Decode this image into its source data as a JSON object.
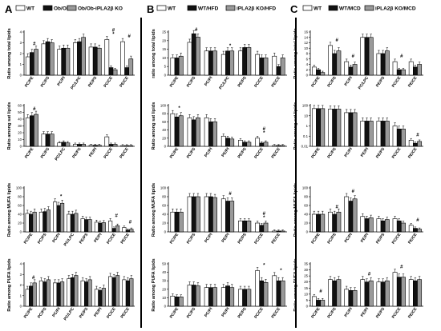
{
  "colors": {
    "wt": "#ffffff",
    "treated": "#111111",
    "ko": "#9a9a9a",
    "stroke": "#000000"
  },
  "chart_data": [
    {
      "type": "bar",
      "panel": "A",
      "row": 0,
      "ylabel": "Ratio among total lipids",
      "scale": "linear",
      "ylim": [
        0,
        4
      ],
      "yticks": [
        "0",
        "1",
        "2",
        "3",
        "4"
      ],
      "categories": [
        "PC/PE",
        "PC/PS",
        "PC/PI",
        "PC/LPC",
        "PE/PS",
        "PC/CE",
        "PE/CE"
      ],
      "series": [
        {
          "name": "WT",
          "values": [
            1.7,
            2.9,
            2.4,
            3.0,
            2.6,
            3.3,
            3.1
          ]
        },
        {
          "name": "Ob/Ob",
          "values": [
            2.1,
            3.1,
            2.5,
            3.1,
            2.6,
            0.7,
            0.7
          ]
        },
        {
          "name": "Ob/Ob-iPLA2β KO",
          "values": [
            2.4,
            3.0,
            2.5,
            3.5,
            2.5,
            0.5,
            1.5
          ]
        }
      ],
      "annotations": [
        {
          "cat": 0,
          "text": "#"
        },
        {
          "cat": 5,
          "text": "*"
        },
        {
          "cat": 5,
          "text": "#"
        },
        {
          "cat": 6,
          "text": "#"
        }
      ]
    },
    {
      "type": "bar",
      "panel": "A",
      "row": 1,
      "ylabel": "Ratio among sat lipids",
      "scale": "linear",
      "ylim": [
        0,
        60
      ],
      "yticks": [
        "0",
        "10",
        "20",
        "30",
        "40",
        "50",
        "60"
      ],
      "categories": [
        "PC/PE",
        "PC/PS",
        "PC/LPC",
        "PE/PS",
        "PE/PI",
        "PC/CE",
        "PE/CE"
      ],
      "series": [
        {
          "name": "WT",
          "values": [
            42,
            18,
            5,
            3,
            1.5,
            14,
            1
          ]
        },
        {
          "name": "Ob/Ob",
          "values": [
            45,
            18,
            6,
            3,
            1.5,
            3,
            1
          ]
        },
        {
          "name": "Ob/Ob-iPLA2β KO",
          "values": [
            47,
            18,
            5,
            3,
            1.5,
            3,
            1
          ]
        }
      ],
      "annotations": [
        {
          "cat": 0,
          "text": "#"
        }
      ]
    },
    {
      "type": "bar",
      "panel": "A",
      "row": 2,
      "ylabel": "Ratio among MUFA lipids",
      "scale": "linear",
      "ylim": [
        0,
        100
      ],
      "yticks": [
        "0",
        "20",
        "40",
        "60",
        "80",
        "100"
      ],
      "categories": [
        "PC/PE",
        "PC/PS",
        "PC/PI",
        "PC/LPC",
        "PE/PS",
        "PE/PI",
        "PC/CE",
        "PE/CE"
      ],
      "series": [
        {
          "name": "WT",
          "values": [
            42,
            45,
            68,
            40,
            30,
            22,
            25,
            10
          ]
        },
        {
          "name": "Ob/Ob",
          "values": [
            40,
            46,
            60,
            40,
            28,
            20,
            8,
            4
          ]
        },
        {
          "name": "Ob/Ob-iPLA2β KO",
          "values": [
            45,
            50,
            65,
            42,
            28,
            21,
            14,
            6
          ]
        }
      ],
      "annotations": [
        {
          "cat": 2,
          "text": "*"
        },
        {
          "cat": 6,
          "text": "#"
        },
        {
          "cat": 7,
          "text": "#"
        }
      ]
    },
    {
      "type": "bar",
      "panel": "A",
      "row": 3,
      "ylabel": "Ratio among PUFA lipids",
      "scale": "linear",
      "ylim": [
        0,
        4
      ],
      "yticks": [
        "0",
        "1",
        "2",
        "3",
        "4"
      ],
      "categories": [
        "PC/PE",
        "PC/PS",
        "PC/PI",
        "PC/LPC",
        "PE/PS",
        "PE/PI",
        "PC/CE",
        "PE/CE"
      ],
      "series": [
        {
          "name": "WT",
          "values": [
            1.6,
            2.4,
            2.2,
            2.6,
            2.4,
            1.6,
            2.8,
            2.5
          ]
        },
        {
          "name": "Ob/Ob",
          "values": [
            1.9,
            2.3,
            2.2,
            2.7,
            2.3,
            1.5,
            2.7,
            2.4
          ]
        },
        {
          "name": "Ob/Ob-iPLA2β KO",
          "values": [
            2.2,
            2.5,
            2.3,
            2.9,
            2.5,
            1.7,
            2.9,
            2.6
          ]
        }
      ],
      "annotations": [
        {
          "cat": 0,
          "text": "#"
        }
      ]
    },
    {
      "type": "bar",
      "panel": "B",
      "row": 0,
      "ylabel": "ratio among total lipids",
      "scale": "linear",
      "ylim": [
        0,
        25
      ],
      "yticks": [
        "0",
        "5",
        "10",
        "15",
        "20",
        "25"
      ],
      "categories": [
        "PC/PE",
        "PC/PS",
        "PC/PI",
        "PC/LPC",
        "PE/PS",
        "PC/CE",
        "PE/CE"
      ],
      "series": [
        {
          "name": "WT",
          "values": [
            10,
            19,
            14,
            12,
            14,
            12,
            11
          ]
        },
        {
          "name": "WT/HFD",
          "values": [
            10,
            24,
            14,
            14,
            16,
            10,
            5
          ]
        },
        {
          "name": "iPLA2β KO/HFD",
          "values": [
            11,
            22,
            14,
            14,
            16,
            10,
            10
          ]
        }
      ],
      "annotations": [
        {
          "cat": 1,
          "text": "#"
        },
        {
          "cat": 3,
          "text": "*"
        }
      ]
    },
    {
      "type": "bar",
      "panel": "B",
      "row": 1,
      "ylabel": "Ratio among sat lipids",
      "scale": "linear",
      "ylim": [
        0,
        100
      ],
      "yticks": [
        "0",
        "20",
        "40",
        "60",
        "80",
        "100"
      ],
      "categories": [
        "PC/PE",
        "PC/PS",
        "PC/PI",
        "PE/PI",
        "PE/PS",
        "PC/CE",
        "PE/CE"
      ],
      "series": [
        {
          "name": "WT",
          "values": [
            80,
            70,
            70,
            25,
            15,
            20,
            2
          ]
        },
        {
          "name": "WT/HFD",
          "values": [
            72,
            65,
            60,
            20,
            10,
            8,
            2
          ]
        },
        {
          "name": "iPLA2β KO/HFD",
          "values": [
            75,
            70,
            60,
            18,
            10,
            10,
            2
          ]
        }
      ],
      "annotations": [
        {
          "cat": 0,
          "text": "*"
        },
        {
          "cat": 5,
          "text": "*"
        },
        {
          "cat": 5,
          "text": "#"
        }
      ]
    },
    {
      "type": "bar",
      "panel": "B",
      "row": 2,
      "ylabel": "Ratio among MUFA lipids",
      "scale": "linear",
      "ylim": [
        0,
        100
      ],
      "yticks": [
        "0",
        "20",
        "40",
        "60",
        "80",
        "100"
      ],
      "categories": [
        "PC/PE",
        "PC/PS",
        "PC/PI",
        "PE/PI",
        "PE/PS",
        "PC/CE",
        "PE/CE"
      ],
      "series": [
        {
          "name": "WT",
          "values": [
            45,
            80,
            80,
            75,
            25,
            20,
            2
          ]
        },
        {
          "name": "WT/HFD",
          "values": [
            45,
            80,
            80,
            70,
            25,
            15,
            2
          ]
        },
        {
          "name": "iPLA2β KO/HFD",
          "values": [
            45,
            80,
            78,
            70,
            25,
            20,
            2
          ]
        }
      ],
      "annotations": [
        {
          "cat": 3,
          "text": "#"
        },
        {
          "cat": 5,
          "text": "*"
        },
        {
          "cat": 5,
          "text": "#"
        }
      ]
    },
    {
      "type": "bar",
      "panel": "B",
      "row": 3,
      "ylabel": "Ratio among PUFA lipids",
      "scale": "linear",
      "ylim": [
        0,
        50
      ],
      "yticks": [
        "0",
        "10",
        "20",
        "30",
        "40",
        "50"
      ],
      "categories": [
        "PC/PE",
        "PC/PS",
        "PC/PI",
        "PE/PI",
        "PE/PS",
        "PC/CE",
        "PE/CE"
      ],
      "series": [
        {
          "name": "WT",
          "values": [
            12,
            25,
            22,
            22,
            20,
            42,
            36
          ]
        },
        {
          "name": "WT/HFD",
          "values": [
            11,
            25,
            22,
            24,
            20,
            30,
            30
          ]
        },
        {
          "name": "iPLA2β KO/HFD",
          "values": [
            11,
            24,
            22,
            22,
            20,
            28,
            30
          ]
        }
      ],
      "annotations": [
        {
          "cat": 5,
          "text": "*"
        },
        {
          "cat": 6,
          "text": "*"
        }
      ]
    },
    {
      "type": "bar",
      "panel": "C",
      "row": 0,
      "ylabel": "Ratio among total lipids",
      "scale": "linear",
      "ylim": [
        0,
        16
      ],
      "yticks": [
        "0",
        "2",
        "4",
        "6",
        "8",
        "10",
        "12",
        "14",
        "16"
      ],
      "categories": [
        "PC/PE",
        "PC/PS",
        "PC/PI",
        "PC/LPC",
        "PE/PS",
        "PC/CE",
        "PE/CE"
      ],
      "series": [
        {
          "name": "WT",
          "values": [
            3,
            11,
            5,
            14,
            8,
            5,
            5
          ]
        },
        {
          "name": "WT/MCD",
          "values": [
            2,
            8,
            3,
            14,
            8,
            2,
            3
          ]
        },
        {
          "name": "iPLA2β KO/MCD",
          "values": [
            1,
            9,
            4,
            14,
            9,
            2,
            4
          ]
        }
      ],
      "annotations": [
        {
          "cat": 1,
          "text": "#"
        },
        {
          "cat": 2,
          "text": "#"
        },
        {
          "cat": 5,
          "text": "#"
        }
      ]
    },
    {
      "type": "bar",
      "panel": "C",
      "row": 1,
      "ylabel": "Ratio among sat lipids",
      "scale": "log",
      "ylim": [
        0.01,
        100
      ],
      "yticks": [
        "100",
        "10",
        "1",
        "0.1",
        "0.01"
      ],
      "categories": [
        "PC/PE",
        "PC/PS",
        "PC/PI",
        "PE/PI",
        "PE/PS",
        "PC/CE",
        "PE/CE"
      ],
      "series": [
        {
          "name": "WT",
          "values": [
            50,
            45,
            20,
            3,
            3,
            1,
            0.04
          ]
        },
        {
          "name": "WT/MCD",
          "values": [
            50,
            45,
            20,
            3,
            3,
            0.5,
            0.02
          ]
        },
        {
          "name": "iPLA2β KO/MCD",
          "values": [
            50,
            45,
            20,
            3,
            3,
            0.5,
            0.03
          ]
        }
      ],
      "annotations": [
        {
          "cat": 6,
          "text": "#"
        }
      ]
    },
    {
      "type": "bar",
      "panel": "C",
      "row": 2,
      "ylabel": "Ratio among MUFA lipids",
      "scale": "linear",
      "ylim": [
        0,
        100
      ],
      "yticks": [
        "0",
        "20",
        "40",
        "60",
        "80",
        "100"
      ],
      "categories": [
        "PC/PE",
        "PC/PS",
        "PC/PI",
        "PE/PI",
        "PE/PS",
        "PC/CE",
        "PE/CE"
      ],
      "series": [
        {
          "name": "WT",
          "values": [
            40,
            45,
            80,
            35,
            30,
            30,
            15
          ]
        },
        {
          "name": "WT/MCD",
          "values": [
            40,
            40,
            70,
            30,
            25,
            25,
            8
          ]
        },
        {
          "name": "iPLA2β KO/MCD",
          "values": [
            40,
            45,
            75,
            32,
            28,
            20,
            6
          ]
        }
      ],
      "annotations": [
        {
          "cat": 1,
          "text": "#"
        },
        {
          "cat": 2,
          "text": "#"
        },
        {
          "cat": 6,
          "text": "#"
        }
      ]
    },
    {
      "type": "bar",
      "panel": "C",
      "row": 3,
      "ylabel": "Ratio among PUFA lipids",
      "scale": "linear",
      "ylim": [
        0,
        35
      ],
      "yticks": [
        "0",
        "5",
        "10",
        "15",
        "20",
        "25",
        "30",
        "35"
      ],
      "categories": [
        "PC/PE",
        "PC/PS",
        "PC/PI",
        "PE/PI",
        "PE/PS",
        "PC/CE",
        "PE/CE"
      ],
      "series": [
        {
          "name": "WT",
          "values": [
            8,
            22,
            14,
            22,
            20,
            28,
            22
          ]
        },
        {
          "name": "WT/MCD",
          "values": [
            5,
            21,
            13,
            20,
            20,
            24,
            21
          ]
        },
        {
          "name": "iPLA2β KO/MCD",
          "values": [
            5,
            22,
            13,
            21,
            21,
            24,
            22
          ]
        }
      ],
      "annotations": [
        {
          "cat": 0,
          "text": "#"
        },
        {
          "cat": 3,
          "text": "#"
        },
        {
          "cat": 5,
          "text": "#"
        }
      ]
    }
  ],
  "legends": [
    {
      "panel": "A",
      "items": [
        "WT",
        "Ob/Ob",
        "Ob/Ob-iPLA2β KO"
      ]
    },
    {
      "panel": "B",
      "items": [
        "WT",
        "WT/HFD",
        "iPLA2β KO/HFD"
      ]
    },
    {
      "panel": "C",
      "items": [
        "WT",
        "WT/MCD",
        "iPLA2β KO/MCD"
      ]
    }
  ],
  "panel_letters": [
    "A",
    "B",
    "C"
  ]
}
